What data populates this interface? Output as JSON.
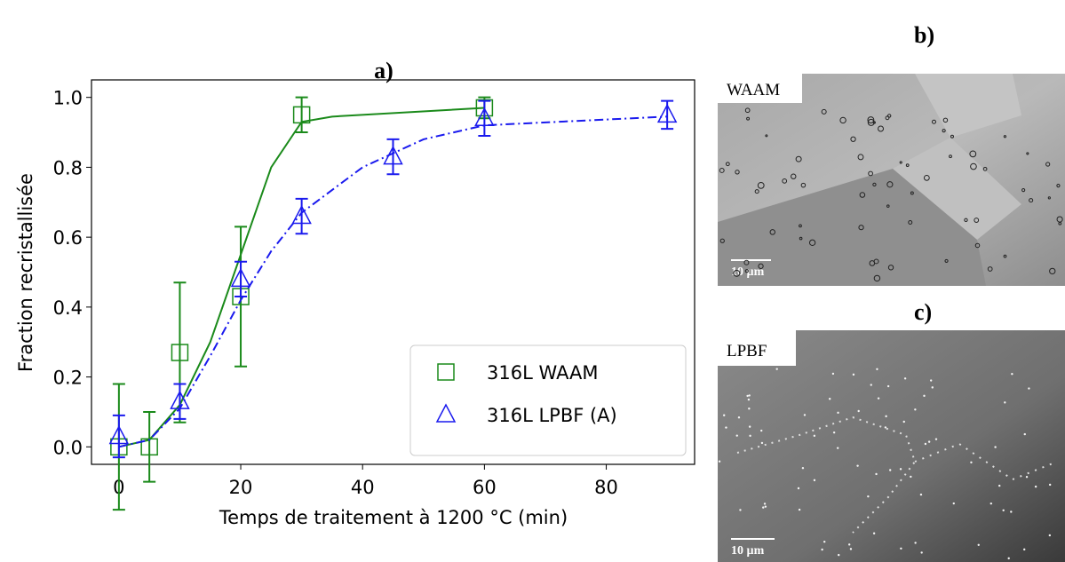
{
  "chart_data": {
    "type": "scatter",
    "title": "a)",
    "x_label": "Temps de traitement à 1200 °C (min)",
    "y_label": "Fraction recristallisée",
    "xlim": [
      -4.5,
      94.5
    ],
    "ylim": [
      -0.05,
      1.05
    ],
    "xticks": [
      0,
      20,
      40,
      60,
      80
    ],
    "yticks": [
      {
        "value": 0,
        "label": "0.0"
      },
      {
        "value": 0.2,
        "label": "0.2"
      },
      {
        "value": 0.4,
        "label": "0.4"
      },
      {
        "value": 0.6,
        "label": "0.6"
      },
      {
        "value": 0.8,
        "label": "0.8"
      },
      {
        "value": 1,
        "label": "1.0"
      }
    ],
    "legend": "lower right",
    "series": [
      {
        "name": "316L WAAM",
        "color": "#1a8a1a",
        "marker": "square",
        "linestyle": "solid",
        "x": [
          0,
          5,
          10,
          20,
          30,
          60
        ],
        "values": [
          0,
          0,
          0.27,
          0.43,
          0.95,
          0.97
        ],
        "errors": [
          0.18,
          0.1,
          0.2,
          0.2,
          0.05,
          0.03
        ],
        "fit_x": [
          0,
          5,
          10,
          15,
          20,
          25,
          30,
          35,
          60
        ],
        "fit_values": [
          0,
          0.02,
          0.12,
          0.3,
          0.55,
          0.8,
          0.93,
          0.945,
          0.97
        ]
      },
      {
        "name": "316L LPBF (A)",
        "color": "#1a1aee",
        "marker": "triangle",
        "linestyle": "dashdot",
        "x": [
          0,
          10,
          20,
          30,
          45,
          60,
          90
        ],
        "values": [
          0.03,
          0.13,
          0.48,
          0.66,
          0.83,
          0.94,
          0.95
        ],
        "errors": [
          0.06,
          0.05,
          0.05,
          0.05,
          0.05,
          0.05,
          0.04
        ],
        "fit_x": [
          0,
          5,
          10,
          15,
          20,
          25,
          30,
          40,
          50,
          60,
          90
        ],
        "fit_values": [
          0,
          0.02,
          0.11,
          0.26,
          0.42,
          0.56,
          0.67,
          0.8,
          0.88,
          0.92,
          0.945
        ]
      }
    ]
  },
  "images": [
    {
      "title": "b)",
      "label": "WAAM",
      "scale": "10 µm"
    },
    {
      "title": "c)",
      "label": "LPBF",
      "scale": "10 µm"
    }
  ]
}
